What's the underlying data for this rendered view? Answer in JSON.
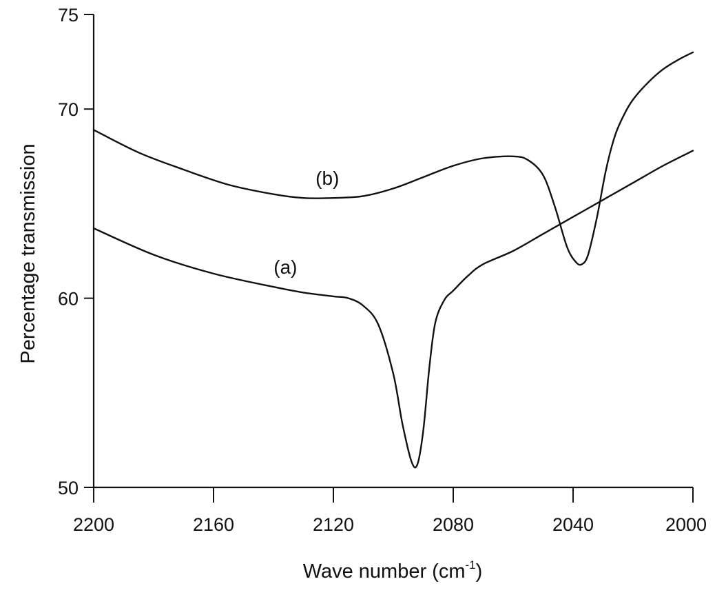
{
  "chart_data": {
    "type": "line",
    "xlabel": "Wave number (cm",
    "xlabel_sup": "-1",
    "xlabel_end": ")",
    "ylabel": "Percentage transmission",
    "xlim": [
      2200,
      2000
    ],
    "ylim": [
      50,
      75
    ],
    "x_ticks": [
      2200,
      2160,
      2120,
      2080,
      2040,
      2000
    ],
    "y_ticks": [
      50,
      60,
      70,
      75
    ],
    "x_tick_labels": [
      "2200",
      "2160",
      "2120",
      "2080",
      "2040",
      "2000"
    ],
    "y_tick_labels": [
      "50",
      "60",
      "70",
      "75"
    ],
    "grid": false,
    "series": [
      {
        "name": "(a)",
        "label_at": [
          2136,
          61.3
        ],
        "x": [
          2200,
          2180,
          2160,
          2140,
          2130,
          2120,
          2115,
          2110,
          2105,
          2100,
          2097,
          2094,
          2092,
          2090,
          2088,
          2086,
          2083,
          2080,
          2075,
          2070,
          2060,
          2050,
          2040,
          2030,
          2020,
          2010,
          2000
        ],
        "y": [
          63.7,
          62.3,
          61.3,
          60.6,
          60.3,
          60.1,
          60.0,
          59.6,
          58.6,
          56.0,
          53.4,
          51.4,
          51.2,
          53.0,
          56.3,
          58.7,
          59.9,
          60.4,
          61.2,
          61.8,
          62.5,
          63.4,
          64.3,
          65.2,
          66.1,
          67.0,
          67.8
        ]
      },
      {
        "name": "(b)",
        "label_at": [
          2122,
          66.0
        ],
        "x": [
          2200,
          2185,
          2170,
          2155,
          2140,
          2130,
          2120,
          2110,
          2100,
          2090,
          2080,
          2070,
          2060,
          2055,
          2050,
          2046,
          2042,
          2039,
          2037,
          2035,
          2032,
          2029,
          2026,
          2023,
          2020,
          2015,
          2010,
          2005,
          2000
        ],
        "y": [
          68.9,
          67.7,
          66.8,
          66.0,
          65.5,
          65.3,
          65.3,
          65.4,
          65.8,
          66.4,
          67.0,
          67.4,
          67.5,
          67.3,
          66.5,
          64.8,
          62.7,
          61.9,
          61.8,
          62.3,
          64.3,
          66.8,
          68.6,
          69.7,
          70.5,
          71.4,
          72.1,
          72.6,
          73.0
        ]
      }
    ]
  }
}
